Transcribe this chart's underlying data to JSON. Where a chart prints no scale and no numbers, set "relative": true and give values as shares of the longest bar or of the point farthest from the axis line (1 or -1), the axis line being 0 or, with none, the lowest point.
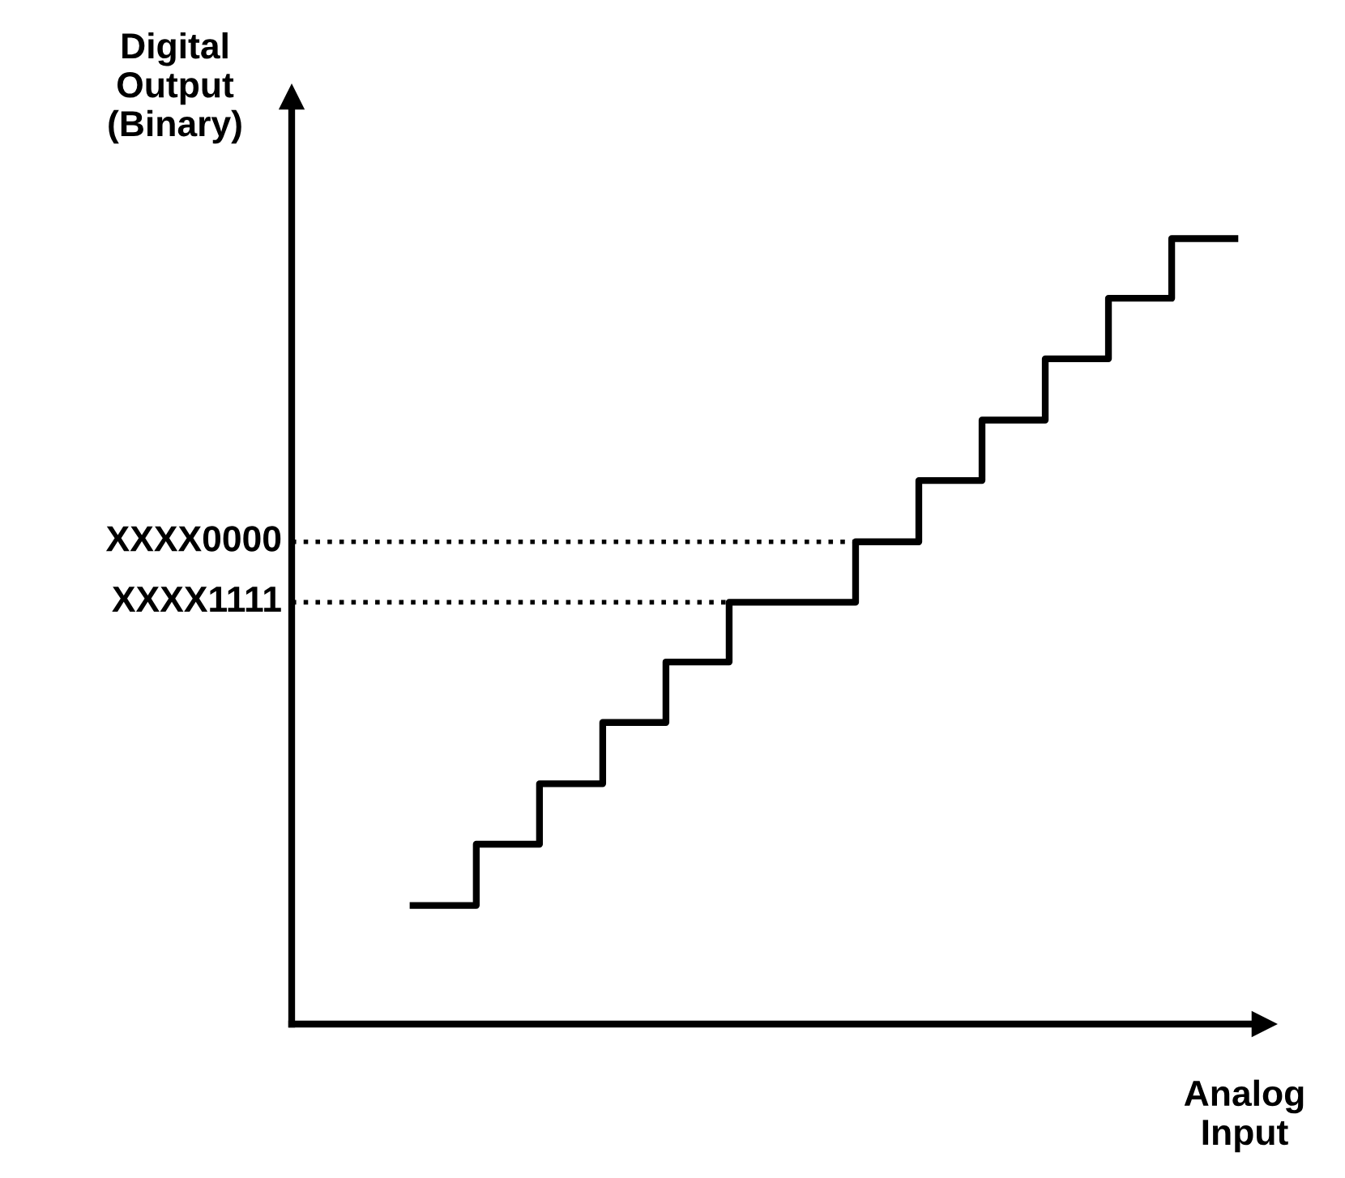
{
  "chart_data": {
    "type": "step",
    "relative": true,
    "xlabel": "Analog\nInput",
    "annotations": [
      "Digital\nOutput\n(Binary)"
    ],
    "categories": [
      null,
      null,
      null,
      null,
      null,
      null,
      null,
      null,
      null,
      null,
      null,
      null,
      null,
      null
    ],
    "values": [
      0.151,
      0.229,
      0.306,
      0.384,
      0.461,
      0.537,
      0.537,
      0.614,
      0.692,
      0.769,
      0.847,
      0.924,
      1.0,
      1.0
    ],
    "color": "#000000",
    "line_style": "solid",
    "ref_lines": [
      {
        "axis": "y",
        "value": 0.614,
        "label": "XXXX0000",
        "line_style": "dotted",
        "color": "#000000"
      },
      {
        "axis": "y",
        "value": 0.537,
        "label": "XXXX1111",
        "line_style": "dotted",
        "color": "#000000"
      }
    ],
    "grid": false,
    "legend": false
  }
}
